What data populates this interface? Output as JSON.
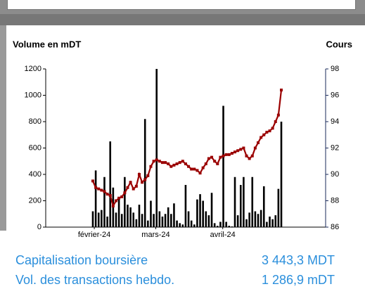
{
  "chart_data": {
    "type": "bar",
    "y_label": "Volume en mDT",
    "y2_label": "Cours",
    "categories": [
      null,
      null,
      null,
      null,
      null,
      null,
      null,
      null,
      null,
      null,
      null,
      null,
      null,
      null,
      null,
      null,
      null,
      null,
      null,
      null,
      null,
      null,
      null,
      null,
      null,
      null,
      null,
      null,
      null,
      null,
      null,
      null,
      null,
      null,
      null,
      null,
      null,
      null,
      null,
      null,
      null,
      null,
      null,
      null,
      null,
      null,
      null,
      null,
      null,
      null,
      null,
      null,
      null,
      null,
      null,
      null,
      null,
      null,
      null,
      null,
      null,
      null,
      null,
      null,
      null,
      null
    ],
    "xticks": [
      {
        "value": 0.5,
        "label": "février-24"
      },
      {
        "value": 21.7,
        "label": "mars-24"
      },
      {
        "value": 44.8,
        "label": "avril-24"
      }
    ],
    "series": [
      {
        "color": "#000000",
        "values": [
          120,
          430,
          110,
          130,
          380,
          80,
          650,
          300,
          110,
          220,
          100,
          380,
          170,
          150,
          110,
          60,
          170,
          100,
          820,
          50,
          200,
          100,
          1200,
          120,
          80,
          100,
          150,
          100,
          180,
          50,
          30,
          20,
          320,
          120,
          50,
          20,
          210,
          250,
          200,
          120,
          90,
          260,
          30,
          10,
          40,
          920,
          40,
          10,
          5,
          380,
          90,
          320,
          380,
          60,
          110,
          380,
          120,
          100,
          130,
          310,
          40,
          80,
          60,
          90,
          290,
          800
        ]
      },
      {
        "color": "#9b0000",
        "axis": "y2",
        "values": [
          89.5,
          89.0,
          88.9,
          88.8,
          88.7,
          88.5,
          88.4,
          87.6,
          88.0,
          88.2,
          88.3,
          88.6,
          89.0,
          89.4,
          88.9,
          89.1,
          90.0,
          89.4,
          89.6,
          89.9,
          90.6,
          91.0,
          91.1,
          91.0,
          90.9,
          90.9,
          90.8,
          90.6,
          90.7,
          90.8,
          90.9,
          91.0,
          90.8,
          90.6,
          90.4,
          90.4,
          90.3,
          90.1,
          90.5,
          90.8,
          91.2,
          91.3,
          91.0,
          90.8,
          91.3,
          91.4,
          91.5,
          91.5,
          91.6,
          91.7,
          91.8,
          91.9,
          92.0,
          91.4,
          91.2,
          91.4,
          92.0,
          92.4,
          92.8,
          93.0,
          93.2,
          93.3,
          93.5,
          94.0,
          94.5,
          96.4
        ]
      }
    ],
    "ylim": [
      0,
      1200
    ],
    "yticks": [
      0,
      200,
      400,
      600,
      800,
      1000,
      1200
    ],
    "y2lim": [
      86,
      98
    ],
    "y2ticks": [
      86,
      88,
      90,
      92,
      94,
      96,
      98
    ]
  },
  "stats": [
    {
      "label": "Capitalisation boursière",
      "value": "3 443,3 MDT"
    },
    {
      "label": "Vol. des transactions hebdo.",
      "value": "1 286,9 mDT"
    }
  ]
}
